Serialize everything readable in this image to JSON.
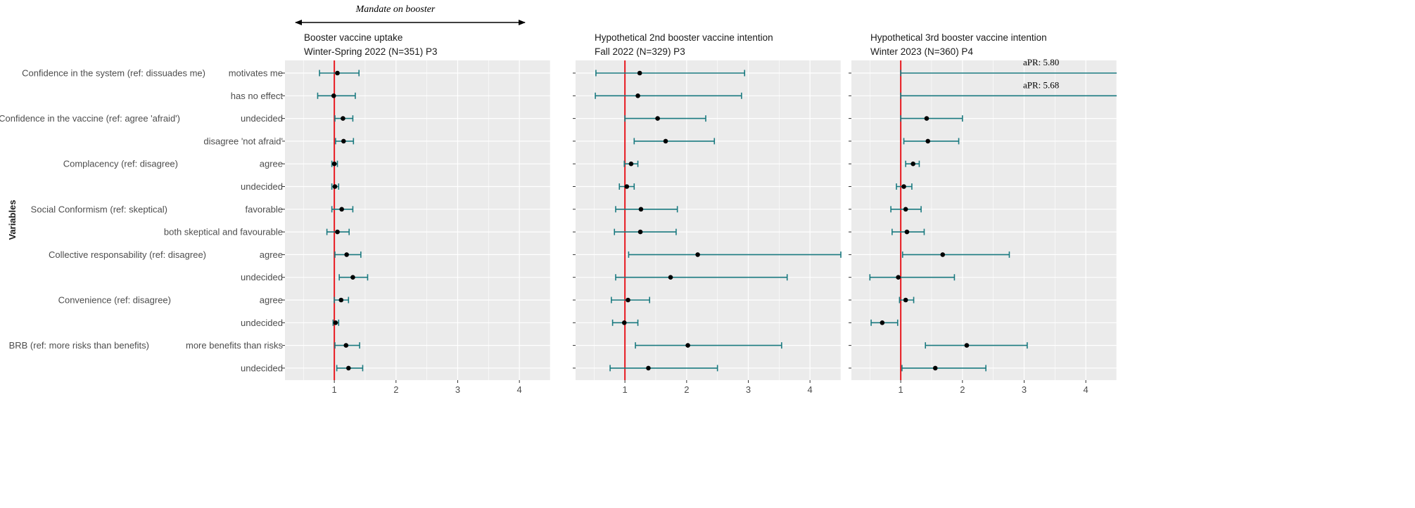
{
  "chart_data": {
    "type": "forest",
    "y_axis_title": "Variables",
    "mandate_label": "Mandate on booster",
    "reference_line": 1,
    "rows": [
      {
        "variable": "Confidence in the system (ref: dissuades me)",
        "level": "motivates me"
      },
      {
        "variable": "",
        "level": "has no effect"
      },
      {
        "variable": "Confidence in the vaccine (ref: agree 'afraid')",
        "level": "undecided"
      },
      {
        "variable": "",
        "level": "disagree 'not afraid'"
      },
      {
        "variable": "Complacency (ref: disagree)",
        "level": "agree"
      },
      {
        "variable": "",
        "level": "undecided"
      },
      {
        "variable": "Social Conformism (ref: skeptical)",
        "level": "favorable"
      },
      {
        "variable": "",
        "level": "both skeptical and favourable"
      },
      {
        "variable": "Collective responsability (ref: disagree)",
        "level": "agree"
      },
      {
        "variable": "",
        "level": "undecided"
      },
      {
        "variable": "Convenience (ref: disagree)",
        "level": "agree"
      },
      {
        "variable": "",
        "level": "undecided"
      },
      {
        "variable": "BRB (ref: more risks than benefits)",
        "level": "more benefits than risks"
      },
      {
        "variable": "",
        "level": "undecided"
      }
    ],
    "panels": [
      {
        "title_line1": "Booster vaccine uptake",
        "title_line2": "Winter-Spring 2022 (N=351) P3",
        "xlim": [
          0.2,
          4.5
        ],
        "ticks": [
          1,
          2,
          3,
          4
        ],
        "estimates": [
          1.05,
          0.99,
          1.14,
          1.15,
          1.0,
          1.01,
          1.12,
          1.05,
          1.2,
          1.3,
          1.11,
          1.02,
          1.19,
          1.23
        ],
        "lower": [
          0.76,
          0.73,
          1.01,
          1.02,
          0.96,
          0.96,
          0.96,
          0.88,
          1.01,
          1.08,
          1.0,
          0.98,
          1.01,
          1.04
        ],
        "upper": [
          1.4,
          1.34,
          1.3,
          1.31,
          1.05,
          1.07,
          1.3,
          1.24,
          1.43,
          1.54,
          1.23,
          1.07,
          1.41,
          1.46
        ],
        "annotations": []
      },
      {
        "title_line1": "Hypothetical 2nd booster vaccine intention",
        "title_line2": "Fall 2022 (N=329) P3",
        "xlim": [
          0.2,
          4.5
        ],
        "ticks": [
          1,
          2,
          3,
          4
        ],
        "estimates": [
          1.24,
          1.21,
          1.53,
          1.66,
          1.1,
          1.03,
          1.26,
          1.25,
          2.18,
          1.74,
          1.05,
          0.99,
          2.02,
          1.38
        ],
        "lower": [
          0.53,
          0.52,
          1.0,
          1.15,
          0.99,
          0.91,
          0.85,
          0.83,
          1.06,
          0.85,
          0.78,
          0.8,
          1.17,
          0.76
        ],
        "upper": [
          2.94,
          2.89,
          2.31,
          2.45,
          1.21,
          1.15,
          1.85,
          1.83,
          4.5,
          3.63,
          1.4,
          1.21,
          3.54,
          2.5
        ],
        "annotations": []
      },
      {
        "title_line1": "Hypothetical 3rd booster vaccine intention",
        "title_line2": "Winter 2023 (N=360) P4",
        "xlim": [
          0.2,
          4.5
        ],
        "ticks": [
          1,
          2,
          3,
          4
        ],
        "estimates": [
          null,
          null,
          1.42,
          1.44,
          1.2,
          1.05,
          1.08,
          1.1,
          1.68,
          0.96,
          1.08,
          0.7,
          2.07,
          1.56
        ],
        "lower": [
          1.0,
          1.0,
          1.0,
          1.05,
          1.08,
          0.93,
          0.84,
          0.86,
          1.03,
          0.5,
          0.98,
          0.52,
          1.4,
          1.02
        ],
        "upper": [
          null,
          null,
          2.0,
          1.94,
          1.3,
          1.18,
          1.33,
          1.38,
          2.76,
          1.87,
          1.21,
          0.95,
          3.05,
          2.38
        ],
        "annotations": [
          {
            "row": 0,
            "text": "aPR: 5.80"
          },
          {
            "row": 1,
            "text": "aPR: 5.68"
          }
        ]
      }
    ]
  }
}
